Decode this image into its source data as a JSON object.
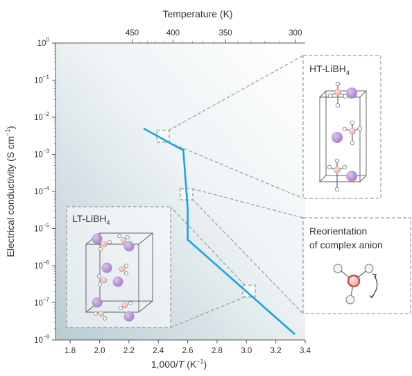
{
  "chart_data": {
    "type": "line",
    "xlabel_prefix": "1,000/",
    "xlabel_var": "T",
    "xlabel_unit": " (K",
    "xlabel_unit_exp": "−1",
    "xlabel_close": ")",
    "ylabel": "Electrical conductivity (S cm",
    "ylabel_exp": "−1",
    "ylabel_close": ")",
    "top_axis_label": "Temperature (K)",
    "xlim": [
      1.7,
      3.4
    ],
    "ylim_log10": [
      -8,
      0
    ],
    "x_ticks": [
      "1.8",
      "2.0",
      "2.2",
      "2.4",
      "2.6",
      "2.8",
      "3.0",
      "3.2",
      "3.4"
    ],
    "x_tick_values": [
      1.8,
      2.0,
      2.2,
      2.4,
      2.6,
      2.8,
      3.0,
      3.2,
      3.4
    ],
    "y_tick_base": "10",
    "y_tick_exps": [
      "0",
      "−1",
      "−2",
      "−3",
      "−4",
      "−5",
      "−6",
      "−7",
      "−8"
    ],
    "y_tick_values_log10": [
      0,
      -1,
      -2,
      -3,
      -4,
      -5,
      -6,
      -7,
      -8
    ],
    "top_ticks": [
      "450",
      "400",
      "350",
      "300"
    ],
    "top_tick_temps_K": [
      450,
      400,
      350,
      300
    ],
    "scale": "log",
    "series": [
      {
        "color": "#1aa3e0",
        "x": [
          2.3,
          2.55,
          2.57,
          2.6,
          2.6,
          3.33
        ],
        "log10_y": [
          -2.3,
          -2.85,
          -2.87,
          -4.45,
          -5.3,
          -7.85
        ]
      }
    ],
    "insets": {
      "ht": {
        "label": "HT-LiBH",
        "sub": "4"
      },
      "lt": {
        "label": "LT-LiBH",
        "sub": "4"
      },
      "reorientation": {
        "line1": "Reorientation",
        "line2": "of complex anion"
      }
    },
    "colors": {
      "li_atom": "#b48ad4",
      "b_atom": "#f2c6c2",
      "h_atom": "#ffffff",
      "highlight_ring": "#c0504d"
    }
  }
}
